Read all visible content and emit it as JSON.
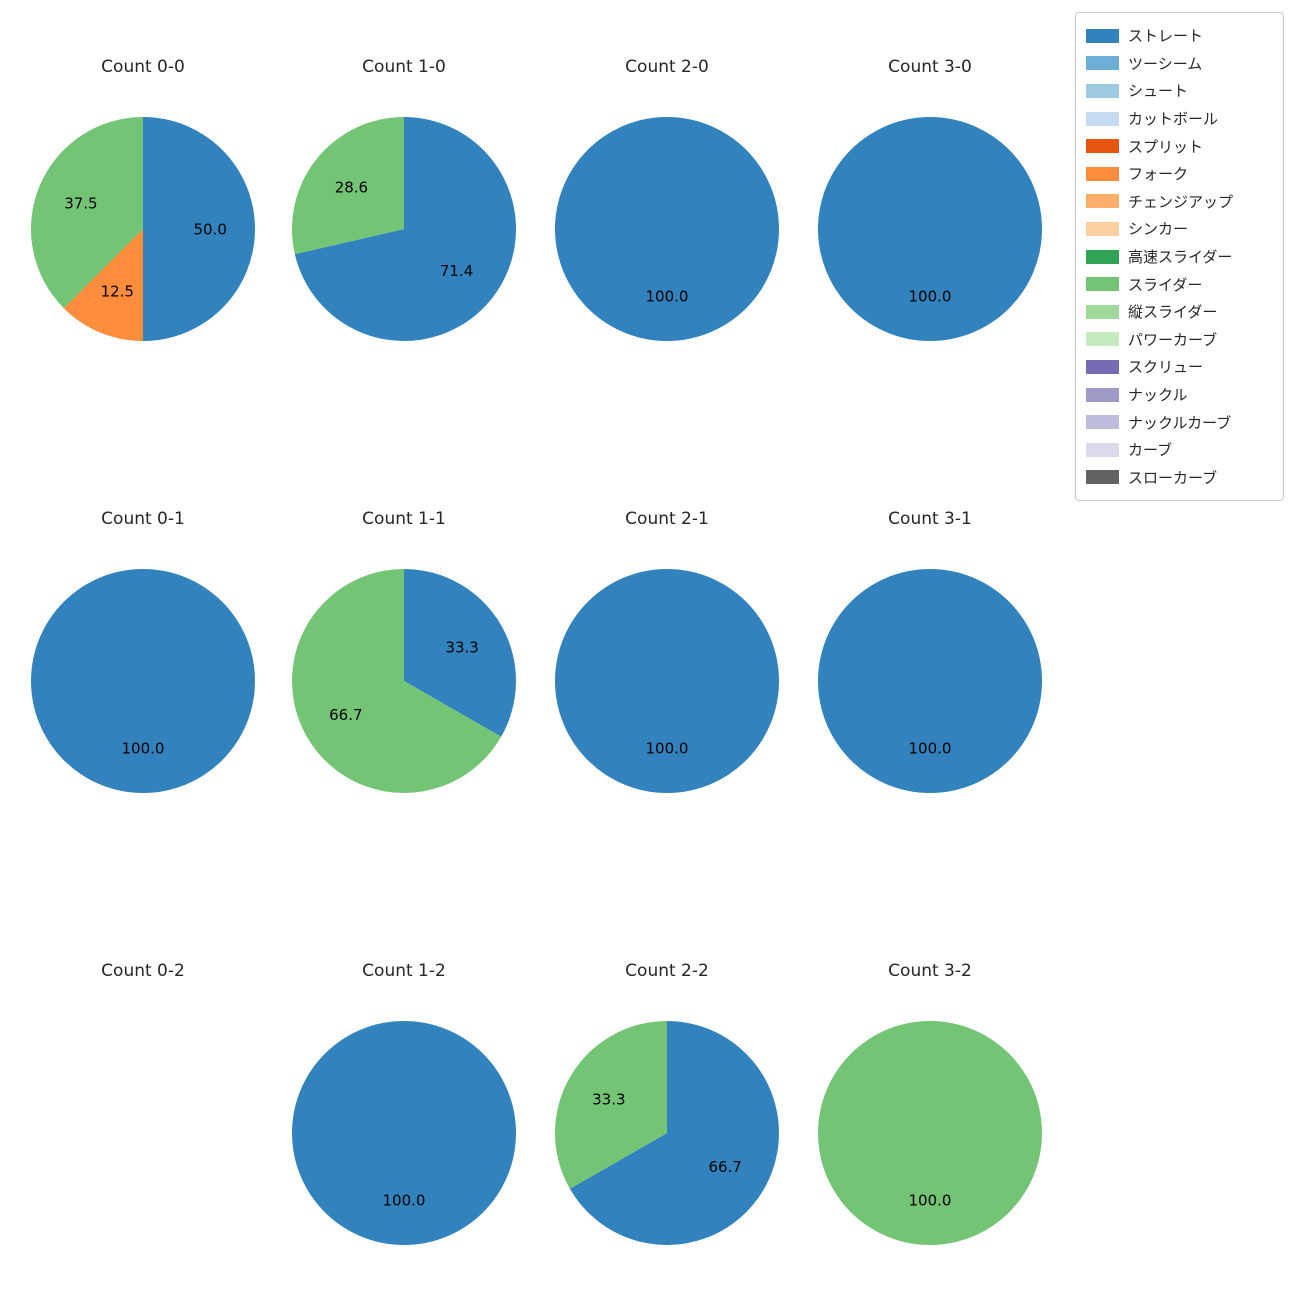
{
  "figure": {
    "background": "#ffffff"
  },
  "legend": {
    "items": [
      {
        "label": "ストレート",
        "color": "#3182bd"
      },
      {
        "label": "ツーシーム",
        "color": "#6baed6"
      },
      {
        "label": "シュート",
        "color": "#9ecae1"
      },
      {
        "label": "カットボール",
        "color": "#c6dbef"
      },
      {
        "label": "スプリット",
        "color": "#e6550d"
      },
      {
        "label": "フォーク",
        "color": "#fd8d3c"
      },
      {
        "label": "チェンジアップ",
        "color": "#fdae6b"
      },
      {
        "label": "シンカー",
        "color": "#fdd0a2"
      },
      {
        "label": "高速スライダー",
        "color": "#31a354"
      },
      {
        "label": "スライダー",
        "color": "#74c476"
      },
      {
        "label": "縦スライダー",
        "color": "#a1d99b"
      },
      {
        "label": "パワーカーブ",
        "color": "#c7e9c0"
      },
      {
        "label": "スクリュー",
        "color": "#756bb1"
      },
      {
        "label": "ナックル",
        "color": "#9e9ac8"
      },
      {
        "label": "ナックルカーブ",
        "color": "#bcbddc"
      },
      {
        "label": "カーブ",
        "color": "#dadaeb"
      },
      {
        "label": "スローカーブ",
        "color": "#636363"
      }
    ]
  },
  "chart_data": [
    {
      "type": "pie",
      "title": "Count 0-0",
      "startangle": 90,
      "clockwise": true,
      "slices": [
        {
          "label": "ストレート",
          "value": 50.0,
          "pct_label": "50.0",
          "color": "#3182bd"
        },
        {
          "label": "フォーク",
          "value": 12.5,
          "pct_label": "12.5",
          "color": "#fd8d3c"
        },
        {
          "label": "スライダー",
          "value": 37.5,
          "pct_label": "37.5",
          "color": "#74c476"
        }
      ]
    },
    {
      "type": "pie",
      "title": "Count 1-0",
      "startangle": 90,
      "clockwise": true,
      "slices": [
        {
          "label": "ストレート",
          "value": 71.4,
          "pct_label": "71.4",
          "color": "#3182bd"
        },
        {
          "label": "スライダー",
          "value": 28.6,
          "pct_label": "28.6",
          "color": "#74c476"
        }
      ]
    },
    {
      "type": "pie",
      "title": "Count 2-0",
      "startangle": 90,
      "clockwise": true,
      "slices": [
        {
          "label": "ストレート",
          "value": 100.0,
          "pct_label": "100.0",
          "color": "#3182bd"
        }
      ]
    },
    {
      "type": "pie",
      "title": "Count 3-0",
      "startangle": 90,
      "clockwise": true,
      "slices": [
        {
          "label": "ストレート",
          "value": 100.0,
          "pct_label": "100.0",
          "color": "#3182bd"
        }
      ]
    },
    {
      "type": "pie",
      "title": "Count 0-1",
      "startangle": 90,
      "clockwise": true,
      "slices": [
        {
          "label": "ストレート",
          "value": 100.0,
          "pct_label": "100.0",
          "color": "#3182bd"
        }
      ]
    },
    {
      "type": "pie",
      "title": "Count 1-1",
      "startangle": 90,
      "clockwise": true,
      "slices": [
        {
          "label": "ストレート",
          "value": 33.3,
          "pct_label": "33.3",
          "color": "#3182bd"
        },
        {
          "label": "スライダー",
          "value": 66.7,
          "pct_label": "66.7",
          "color": "#74c476"
        }
      ]
    },
    {
      "type": "pie",
      "title": "Count 2-1",
      "startangle": 90,
      "clockwise": true,
      "slices": [
        {
          "label": "ストレート",
          "value": 100.0,
          "pct_label": "100.0",
          "color": "#3182bd"
        }
      ]
    },
    {
      "type": "pie",
      "title": "Count 3-1",
      "startangle": 90,
      "clockwise": true,
      "slices": [
        {
          "label": "ストレート",
          "value": 100.0,
          "pct_label": "100.0",
          "color": "#3182bd"
        }
      ]
    },
    {
      "type": "pie",
      "title": "Count 0-2",
      "startangle": 90,
      "clockwise": true,
      "slices": []
    },
    {
      "type": "pie",
      "title": "Count 1-2",
      "startangle": 90,
      "clockwise": true,
      "slices": [
        {
          "label": "ストレート",
          "value": 100.0,
          "pct_label": "100.0",
          "color": "#3182bd"
        }
      ]
    },
    {
      "type": "pie",
      "title": "Count 2-2",
      "startangle": 90,
      "clockwise": true,
      "slices": [
        {
          "label": "ストレート",
          "value": 66.7,
          "pct_label": "66.7",
          "color": "#3182bd"
        },
        {
          "label": "スライダー",
          "value": 33.3,
          "pct_label": "33.3",
          "color": "#74c476"
        }
      ]
    },
    {
      "type": "pie",
      "title": "Count 3-2",
      "startangle": 90,
      "clockwise": true,
      "slices": [
        {
          "label": "スライダー",
          "value": 100.0,
          "pct_label": "100.0",
          "color": "#74c476"
        }
      ]
    }
  ]
}
